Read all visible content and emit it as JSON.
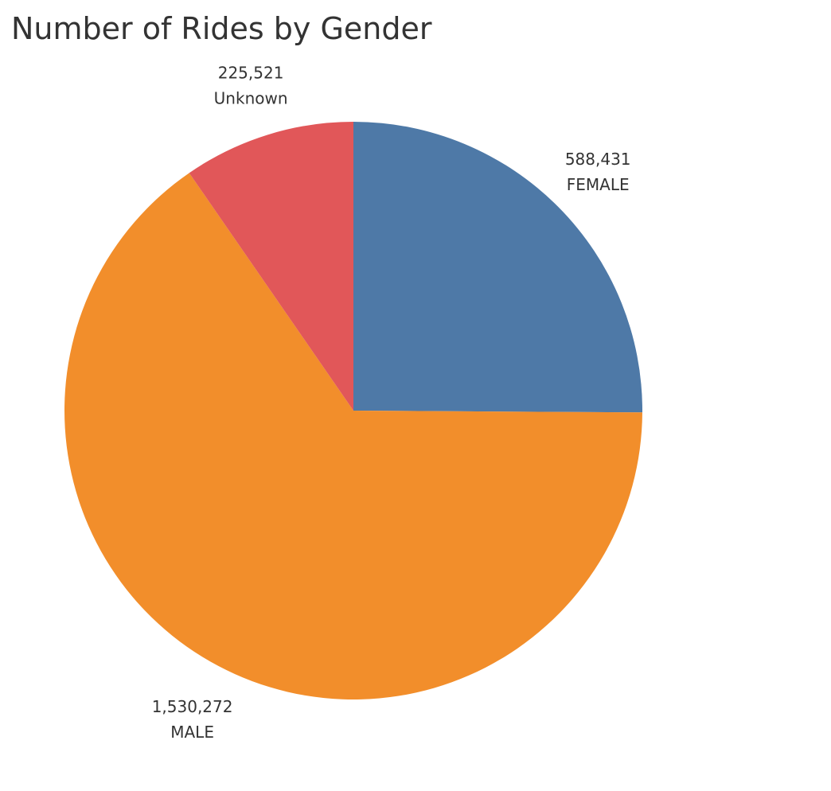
{
  "chart_data": {
    "type": "pie",
    "title": "Number of Rides by Gender",
    "slices": [
      {
        "label": "FEMALE",
        "value": 588431,
        "value_label": "588,431",
        "color": "#4e79a7"
      },
      {
        "label": "MALE",
        "value": 1530272,
        "value_label": "1,530,272",
        "color": "#f28e2b"
      },
      {
        "label": "Unknown",
        "value": 225521,
        "value_label": "225,521",
        "color": "#e15759"
      }
    ],
    "start_angle": "12 o'clock",
    "direction": "clockwise",
    "legend": "none"
  }
}
